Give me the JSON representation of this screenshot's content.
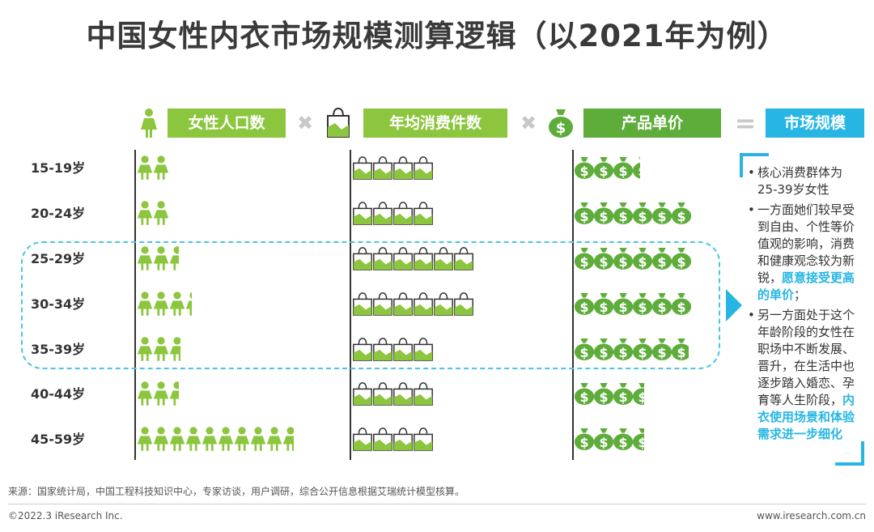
{
  "title": "中国女性内衣市场规模测算逻辑（以2021年为例）",
  "headers": {
    "population": "女性人口数",
    "times1": "✖",
    "annual": "年均消费件数",
    "times2": "✖",
    "price": "产品单价",
    "equals": "=",
    "market": "市场规模"
  },
  "colors": {
    "light_green": "#8cc63e",
    "green": "#5ead3b",
    "highlight_blue": "#27b6e3",
    "icon_green": "#8cc63e"
  },
  "icons": [
    "woman-icon",
    "shopping-bag-icon",
    "money-bag-icon"
  ],
  "chart_data": {
    "type": "pictograph",
    "title": "中国女性内衣市场规模测算逻辑（以2021年为例）",
    "categories": [
      "15-19岁",
      "20-24岁",
      "25-29岁",
      "30-34岁",
      "35-39岁",
      "40-44岁",
      "45-59岁"
    ],
    "series": [
      {
        "name": "女性人口数",
        "icon": "woman-icon",
        "values": [
          2,
          2,
          2.5,
          3.3,
          2.6,
          2.5,
          9.6
        ]
      },
      {
        "name": "年均消费件数",
        "icon": "shopping-bag-icon",
        "values": [
          4,
          4,
          6,
          6,
          4,
          4,
          4
        ]
      },
      {
        "name": "产品单价",
        "icon": "money-bag-icon",
        "values": [
          3.3,
          6,
          6,
          6,
          5.8,
          3.5,
          3.5
        ]
      }
    ],
    "highlighted_categories": [
      "25-29岁",
      "30-34岁",
      "35-39岁"
    ]
  },
  "notes": [
    {
      "parts": [
        {
          "text": "核心消费群体为25-39岁女性",
          "hi": false
        }
      ]
    },
    {
      "parts": [
        {
          "text": "一方面她们较早受到自由、个性等价值观的影响，消费和健康观念较为新锐，",
          "hi": false
        },
        {
          "text": "愿意接受更高的单价",
          "hi": true
        },
        {
          "text": "；",
          "hi": false
        }
      ]
    },
    {
      "parts": [
        {
          "text": "另一方面处于这个年龄阶段的女性在职场中不断发展、晋升，在生活中也逐步踏入婚恋、孕育等人生阶段，",
          "hi": false
        },
        {
          "text": "内衣使用场景和体验需求进一步细化",
          "hi": true
        }
      ]
    }
  ],
  "footer": {
    "source": "来源：国家统计局，中国工程科技知识中心，专家访谈，用户调研，综合公开信息根据艾瑞统计模型核算。",
    "copyright": "©2022.3 iResearch Inc.",
    "website": "www.iresearch.com.cn"
  }
}
